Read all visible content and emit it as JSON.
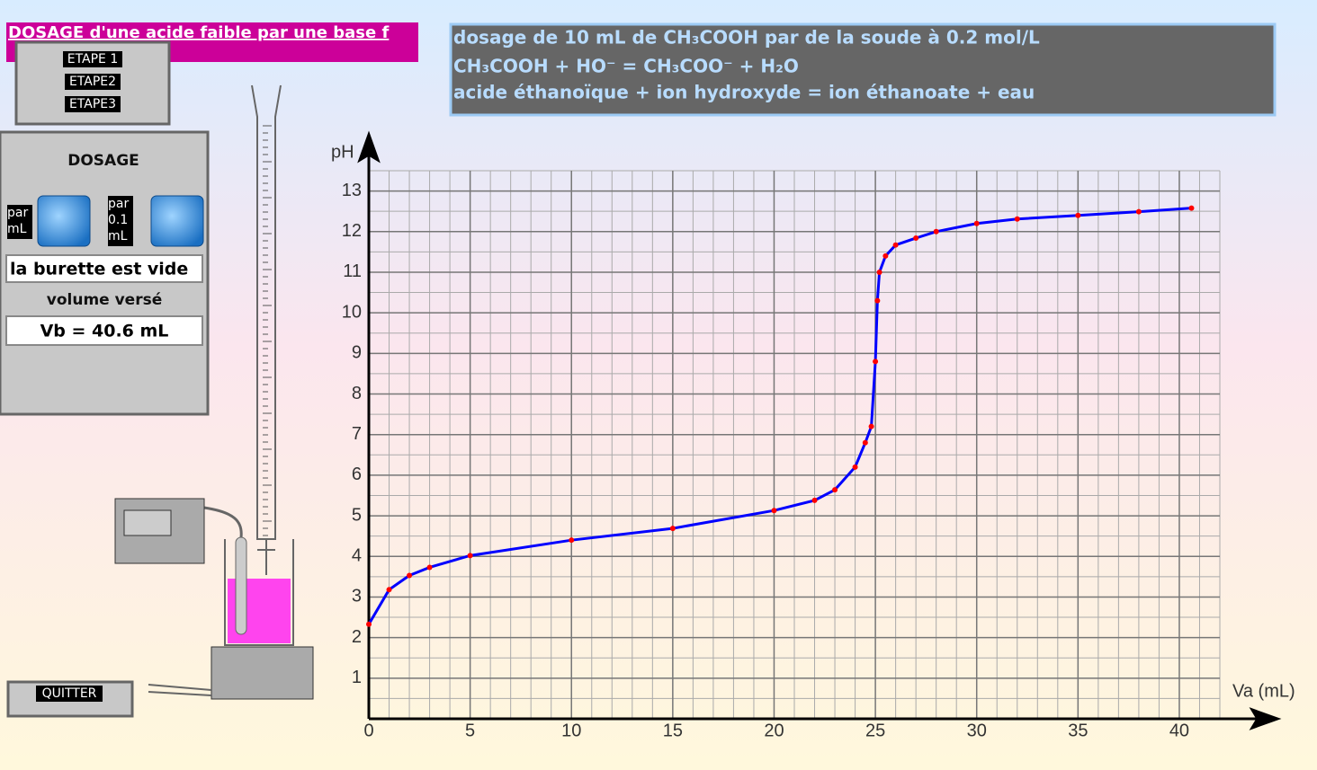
{
  "header": {
    "title": "DOSAGE d'une acide faible par une base f"
  },
  "steps": [
    "ETAPE 1",
    "ETAPE2",
    "ETAPE3"
  ],
  "panel": {
    "title": "DOSAGE",
    "buttons": [
      "par mL",
      "par 0.1 mL"
    ],
    "status": "la burette est vide",
    "volume_label": "volume versé",
    "volume": "Vb = 40.6 mL"
  },
  "quit": "QUITTER",
  "info": {
    "lines": [
      "dosage de 10 mL de CH₃COOH par de la soude à 0.2 mol/L",
      "CH₃COOH + HO⁻ = CH₃COO⁻ + H₂O",
      "acide éthanoïque + ion hydroxyde = ion éthanoate + eau"
    ]
  },
  "chart_data": {
    "type": "line",
    "x_label": "Va (mL)",
    "y_label": "pH",
    "x": [
      0,
      1,
      2,
      3,
      5,
      10,
      15,
      20,
      22,
      23,
      24,
      24.5,
      24.8,
      25,
      25.1,
      25.2,
      25.5,
      26,
      27,
      28,
      30,
      32,
      35,
      38,
      40.6
    ],
    "series": [
      {
        "name": "pH",
        "color": "#0000ff",
        "marker_color": "#ff0000",
        "values": [
          2.33,
          3.18,
          3.53,
          3.73,
          4.02,
          4.4,
          4.69,
          5.13,
          5.38,
          5.64,
          6.2,
          6.8,
          7.2,
          8.8,
          10.3,
          11.0,
          11.4,
          11.67,
          11.84,
          12.0,
          12.2,
          12.31,
          12.4,
          12.49,
          12.58
        ]
      }
    ],
    "xlim": [
      0,
      42
    ],
    "ylim": [
      0,
      13.5
    ],
    "xticks": [
      0,
      5,
      10,
      15,
      20,
      25,
      30,
      35,
      40
    ],
    "yticks": [
      1,
      2,
      3,
      4,
      5,
      6,
      7,
      8,
      9,
      10,
      11,
      12,
      13
    ],
    "grid": true
  }
}
